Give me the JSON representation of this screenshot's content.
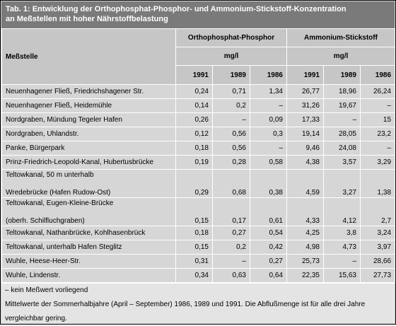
{
  "title": {
    "line1": "Tab. 1: Entwicklung der Orthophosphat-Phosphor- und Ammonium-Stickstoff-Konzentration",
    "line2": "an Meßstellen mit hoher Nährstoffbelastung"
  },
  "headers": {
    "station": "Meßstelle",
    "group1": "Orthophosphat-Phosphor",
    "group2": "Ammonium-Stickstoff",
    "unit1": "mg/l",
    "unit2": "mg/l",
    "years": [
      "1991",
      "1989",
      "1986",
      "1991",
      "1989",
      "1986"
    ]
  },
  "rows": [
    {
      "name": [
        "Neuenhagener Fließ, Friedrichshagener Str."
      ],
      "v": [
        "0,24",
        "0,71",
        "1,34",
        "26,77",
        "18,96",
        "26,24"
      ]
    },
    {
      "name": [
        "Neuenhagener Fließ, Heidemühle"
      ],
      "v": [
        "0,14",
        "0,2",
        "–",
        "31,26",
        "19,67",
        "–"
      ]
    },
    {
      "name": [
        "Nordgraben, Mündung Tegeler Hafen"
      ],
      "v": [
        "0,26",
        "–",
        "0,09",
        "17,33",
        "–",
        "15"
      ]
    },
    {
      "name": [
        "Nordgraben, Uhlandstr."
      ],
      "v": [
        "0,12",
        "0,56",
        "0,3",
        "19,14",
        "28,05",
        "23,2"
      ]
    },
    {
      "name": [
        "Panke, Bürgerpark"
      ],
      "v": [
        "0,18",
        "0,56",
        "–",
        "9,46",
        "24,08",
        "–"
      ]
    },
    {
      "name": [
        "Prinz-Friedrich-Leopold-Kanal, Hubertusbrücke"
      ],
      "v": [
        "0,19",
        "0,28",
        "0,58",
        "4,38",
        "3,57",
        "3,29"
      ]
    },
    {
      "name": [
        "Teltowkanal, 50 m unterhalb",
        "Wredebrücke (Hafen Rudow-Ost)"
      ],
      "v": [
        "0,29",
        "0,68",
        "0,38",
        "4,59",
        "3,27",
        "1,38"
      ]
    },
    {
      "name": [
        "Teltowkanal, Eugen-Kleine-Brücke",
        "(oberh. Schilfluchgraben)"
      ],
      "v": [
        "0,15",
        "0,17",
        "0,61",
        "4,33",
        "4,12",
        "2,7"
      ]
    },
    {
      "name": [
        "Teltowkanal, Nathanbrücke, Kohlhasenbrück"
      ],
      "v": [
        "0,18",
        "0,27",
        "0,54",
        "4,25",
        "3,8",
        "3,24"
      ]
    },
    {
      "name": [
        "Teltowkanal, unterhalb Hafen Steglitz"
      ],
      "v": [
        "0,15",
        "0,2",
        "0,42",
        "4,98",
        "4,73",
        "3,97"
      ]
    },
    {
      "name": [
        "Wuhle, Heese-Heer-Str."
      ],
      "v": [
        "0,31",
        "–",
        "0,27",
        "25,73",
        "–",
        "28,66"
      ]
    },
    {
      "name": [
        "Wuhle, Lindenstr."
      ],
      "v": [
        "0,34",
        "0,63",
        "0,64",
        "22,35",
        "15,63",
        "27,73"
      ]
    }
  ],
  "notes": {
    "line1": "– kein Meßwert vorliegend",
    "line2": "Mittelwerte der Sommerhalbjahre (April – September) 1986, 1989 und 1991. Die Abflußmenge ist für alle drei Jahre",
    "line3": "vergleichbar gering."
  }
}
